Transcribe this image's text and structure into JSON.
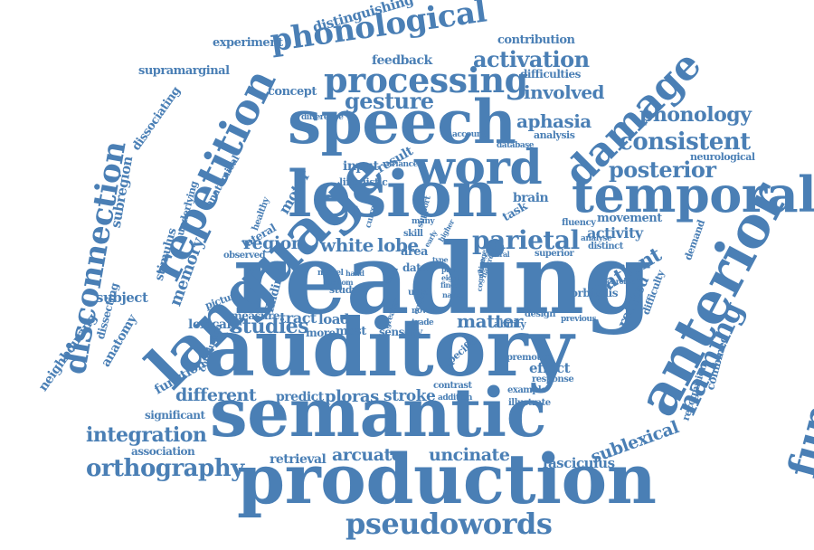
{
  "color": "#4a7fb5",
  "words": [
    "reading",
    "auditory",
    "production",
    "semantic",
    "language",
    "lesion",
    "speech",
    "repetition",
    "temporal",
    "anterior",
    "functional",
    "word",
    "phonological",
    "damage",
    "processing",
    "disconnection",
    "naming",
    "pseudowords",
    "orthography",
    "integration",
    "consistent",
    "posterior",
    "phonology",
    "parietal",
    "gesture",
    "activation",
    "involved",
    "aphasia",
    "patient",
    "region",
    "white",
    "lobe",
    "matter",
    "studies",
    "different",
    "sublexical",
    "arcuate",
    "uncinate",
    "fasciculus",
    "retrieval",
    "association",
    "significant",
    "predict",
    "ploras",
    "stroke",
    "subject",
    "memory",
    "subregion",
    "supramarginal",
    "experiment",
    "distinguishing",
    "contribution",
    "feedback",
    "difficulties",
    "concept",
    "dissociating",
    "neighbouring",
    "anatomy",
    "function",
    "lexical",
    "measure",
    "tract",
    "load",
    "more",
    "most",
    "sensory",
    "effect",
    "response",
    "activity",
    "movement",
    "fluency",
    "brain",
    "task",
    "result",
    "input",
    "motor",
    "stimulus",
    "picture",
    "observed",
    "finding",
    "study",
    "area",
    "data",
    "ability",
    "design",
    "previous",
    "related",
    "difficulty",
    "demand",
    "combined",
    "recognition",
    "neurological",
    "analysis",
    "account",
    "database",
    "difference",
    "underlying",
    "healthy",
    "lateral",
    "anatomical",
    "linguistic",
    "variance",
    "current",
    "support",
    "higher",
    "distinct",
    "superior",
    "orbitalis",
    "premotor",
    "contrast",
    "addition",
    "example",
    "illustrate",
    "specific",
    "greater",
    "trade",
    "novel",
    "eight",
    "finger",
    "used",
    "name",
    "part",
    "skill",
    "many",
    "ventral",
    "analyse",
    "chronic",
    "conclusion",
    "dissecting",
    "model",
    "bottom",
    "hand",
    "visual",
    "output",
    "type",
    "nature",
    "change",
    "cognitive",
    "early"
  ]
}
